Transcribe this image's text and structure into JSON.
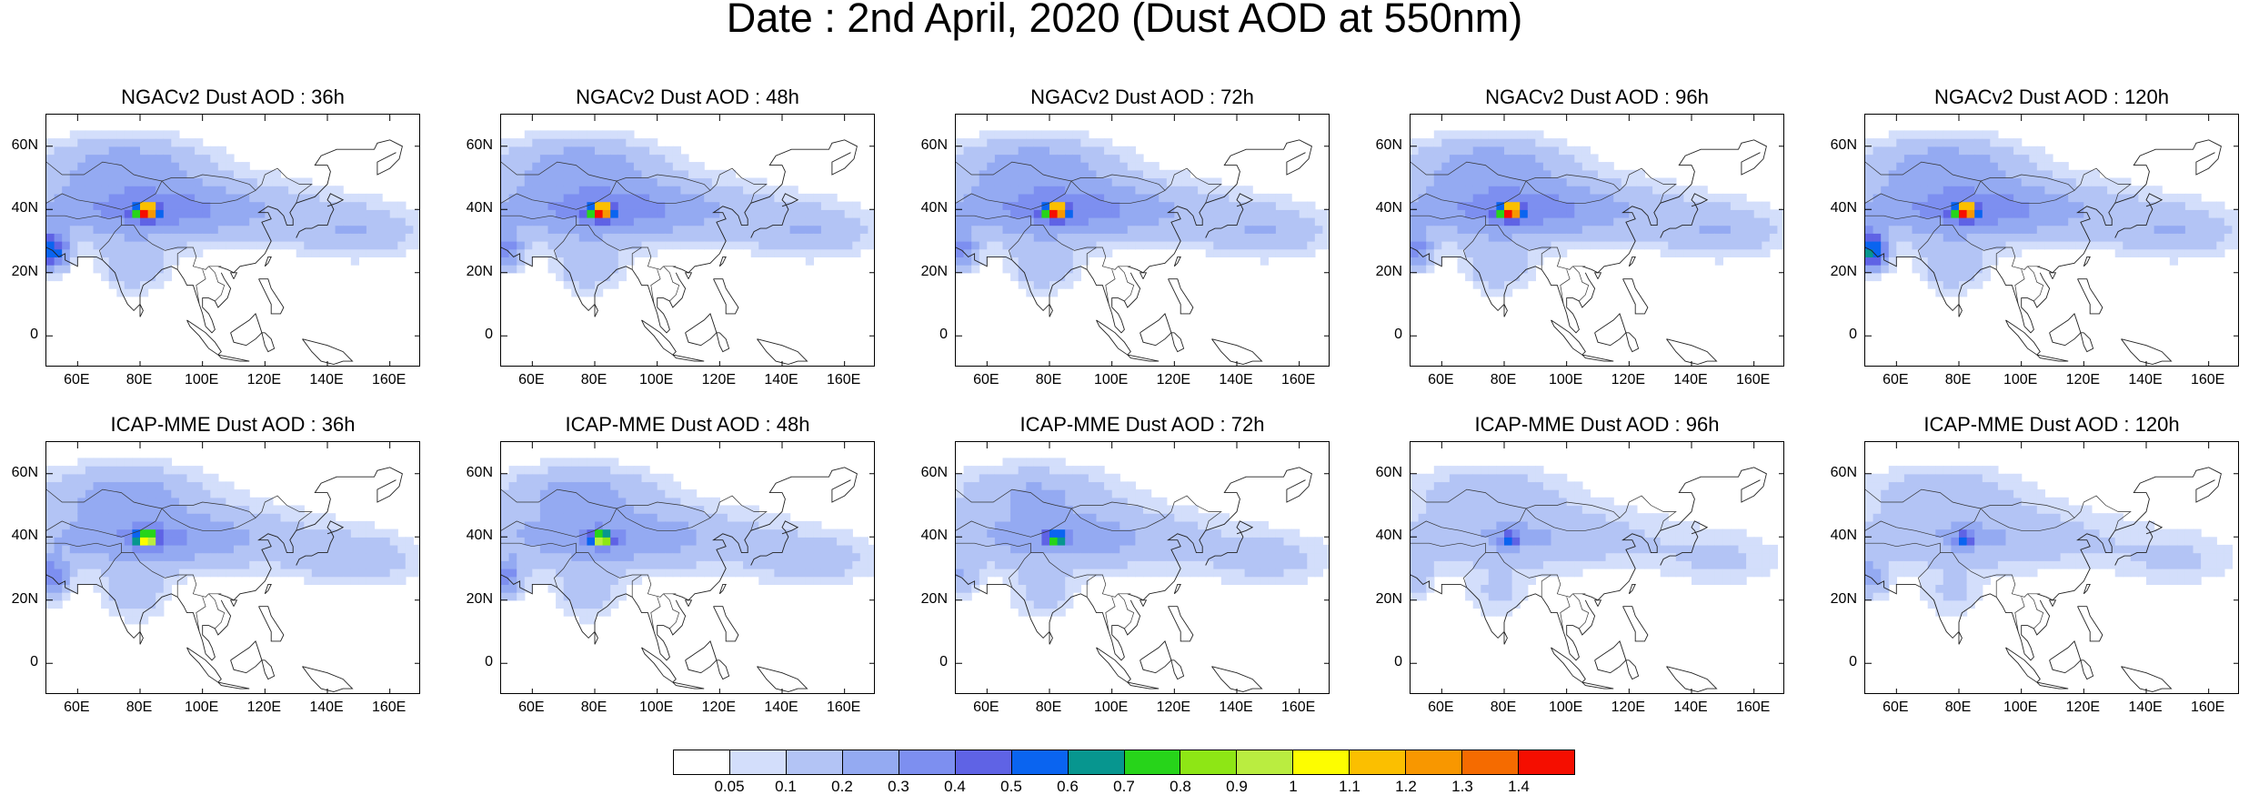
{
  "title": "Date : 2nd April, 2020 (Dust AOD at 550nm)",
  "panels": [
    {
      "title": "NGACv2 Dust AOD : 36h",
      "hot": "red",
      "strength": 1.0,
      "westblob": 0.9
    },
    {
      "title": "NGACv2 Dust AOD : 48h",
      "hot": "red",
      "strength": 1.0,
      "westblob": 0.5
    },
    {
      "title": "NGACv2 Dust AOD : 72h",
      "hot": "red",
      "strength": 1.0,
      "westblob": 0.5
    },
    {
      "title": "NGACv2 Dust AOD : 96h",
      "hot": "red",
      "strength": 1.0,
      "westblob": 0.5
    },
    {
      "title": "NGACv2 Dust AOD : 120h",
      "hot": "red",
      "strength": 1.0,
      "westblob": 1.0
    },
    {
      "title": "ICAP-MME Dust AOD : 36h",
      "hot": "yellow",
      "strength": 0.9,
      "westblob": 0.7
    },
    {
      "title": "ICAP-MME Dust AOD : 48h",
      "hot": "green",
      "strength": 0.85,
      "westblob": 0.6
    },
    {
      "title": "ICAP-MME Dust AOD : 72h",
      "hot": "teal",
      "strength": 0.75,
      "westblob": 0.4
    },
    {
      "title": "ICAP-MME Dust AOD : 96h",
      "hot": "blue",
      "strength": 0.6,
      "westblob": 0.4
    },
    {
      "title": "ICAP-MME Dust AOD : 120h",
      "hot": "blue",
      "strength": 0.6,
      "westblob": 0.7
    }
  ],
  "map": {
    "lon_range": [
      50,
      170
    ],
    "lat_range": [
      -10,
      70
    ],
    "y_ticks": [
      "60N",
      "40N",
      "20N",
      "0"
    ],
    "y_tick_values": [
      60,
      40,
      20,
      0
    ],
    "x_ticks": [
      "60E",
      "80E",
      "100E",
      "120E",
      "140E",
      "160E"
    ],
    "x_tick_values": [
      60,
      80,
      100,
      120,
      140,
      160
    ]
  },
  "colorbar": {
    "labels": [
      "0.05",
      "0.1",
      "0.2",
      "0.3",
      "0.4",
      "0.5",
      "0.6",
      "0.7",
      "0.8",
      "0.9",
      "1",
      "1.1",
      "1.2",
      "1.3",
      "1.4"
    ],
    "colors": [
      "#ffffff",
      "#d3defb",
      "#b3c4f5",
      "#94aaf2",
      "#7d8ff0",
      "#5f63e5",
      "#0a64f0",
      "#07968f",
      "#27d41a",
      "#8ee615",
      "#baed40",
      "#fdfd00",
      "#fbbf00",
      "#f89700",
      "#f56b00",
      "#f50e00"
    ]
  }
}
